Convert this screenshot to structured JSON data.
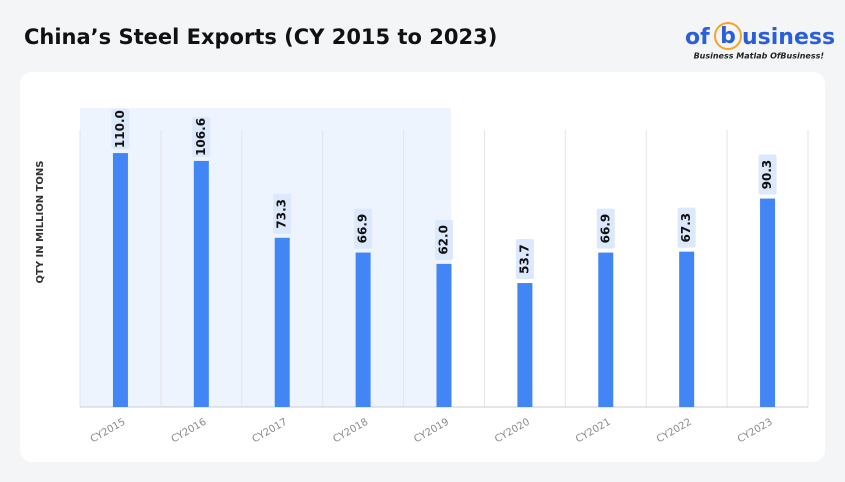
{
  "brand": {
    "parts": [
      "of",
      "b",
      "usiness"
    ],
    "tagline": "Business Matlab OfBusiness!"
  },
  "chart_data": {
    "type": "bar",
    "title": "China’s Steel Exports (CY 2015 to 2023)",
    "y_label": "QTY IN MILLION TONS",
    "categories": [
      "CY2015",
      "CY2016",
      "CY2017",
      "CY2018",
      "CY2019",
      "CY2020",
      "CY2021",
      "CY2022",
      "CY2023"
    ],
    "values": [
      110.0,
      106.6,
      73.3,
      66.9,
      62.0,
      53.7,
      66.9,
      67.3,
      90.3
    ],
    "value_labels": [
      "110.0",
      "106.6",
      "73.3",
      "66.9",
      "62.0",
      "53.7",
      "66.9",
      "67.3",
      "90.3"
    ],
    "color": "#4285f4",
    "ylim": [
      0,
      120
    ]
  }
}
